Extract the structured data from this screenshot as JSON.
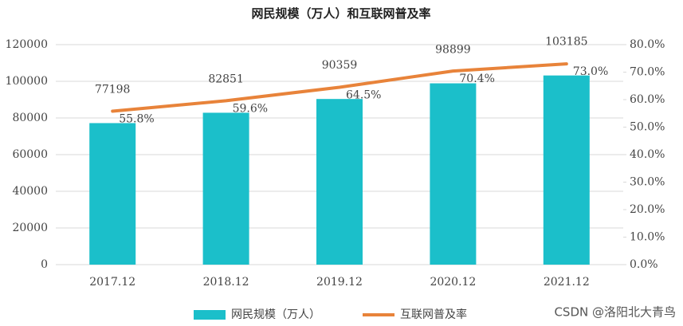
{
  "chart_data": {
    "type": "bar",
    "title": "网民规模（万人）和互联网普及率",
    "categories": [
      "2017.12",
      "2018.12",
      "2019.12",
      "2020.12",
      "2021.12"
    ],
    "series": [
      {
        "name": "网民规模（万人）",
        "type": "bar",
        "color": "#1bbfca",
        "values": [
          77198,
          82851,
          90359,
          98899,
          103185
        ]
      },
      {
        "name": "互联网普及率",
        "type": "line",
        "axis": "y2",
        "color": "#e8833a",
        "values": [
          55.8,
          59.6,
          64.5,
          70.4,
          73.0
        ],
        "value_labels": [
          "55.8%",
          "59.6%",
          "64.5%",
          "70.4%",
          "73.0%"
        ]
      }
    ],
    "ylim": [
      0,
      120000
    ],
    "yticks": [
      0,
      20000,
      40000,
      60000,
      80000,
      100000,
      120000
    ],
    "y2lim": [
      0,
      80
    ],
    "y2ticks": [
      {
        "value": 0,
        "label": "0.0%"
      },
      {
        "value": 10,
        "label": "10.0%"
      },
      {
        "value": 20,
        "label": "20.0%"
      },
      {
        "value": 30,
        "label": "30.0%"
      },
      {
        "value": 40,
        "label": "40.0%"
      },
      {
        "value": 50,
        "label": "50.0%"
      },
      {
        "value": 60,
        "label": "60.0%"
      },
      {
        "value": 70,
        "label": "70.0%"
      },
      {
        "value": 80,
        "label": "80.0%"
      }
    ],
    "grid": true,
    "legend": "bottom",
    "watermark": "CSDN @洛阳北大青鸟"
  }
}
